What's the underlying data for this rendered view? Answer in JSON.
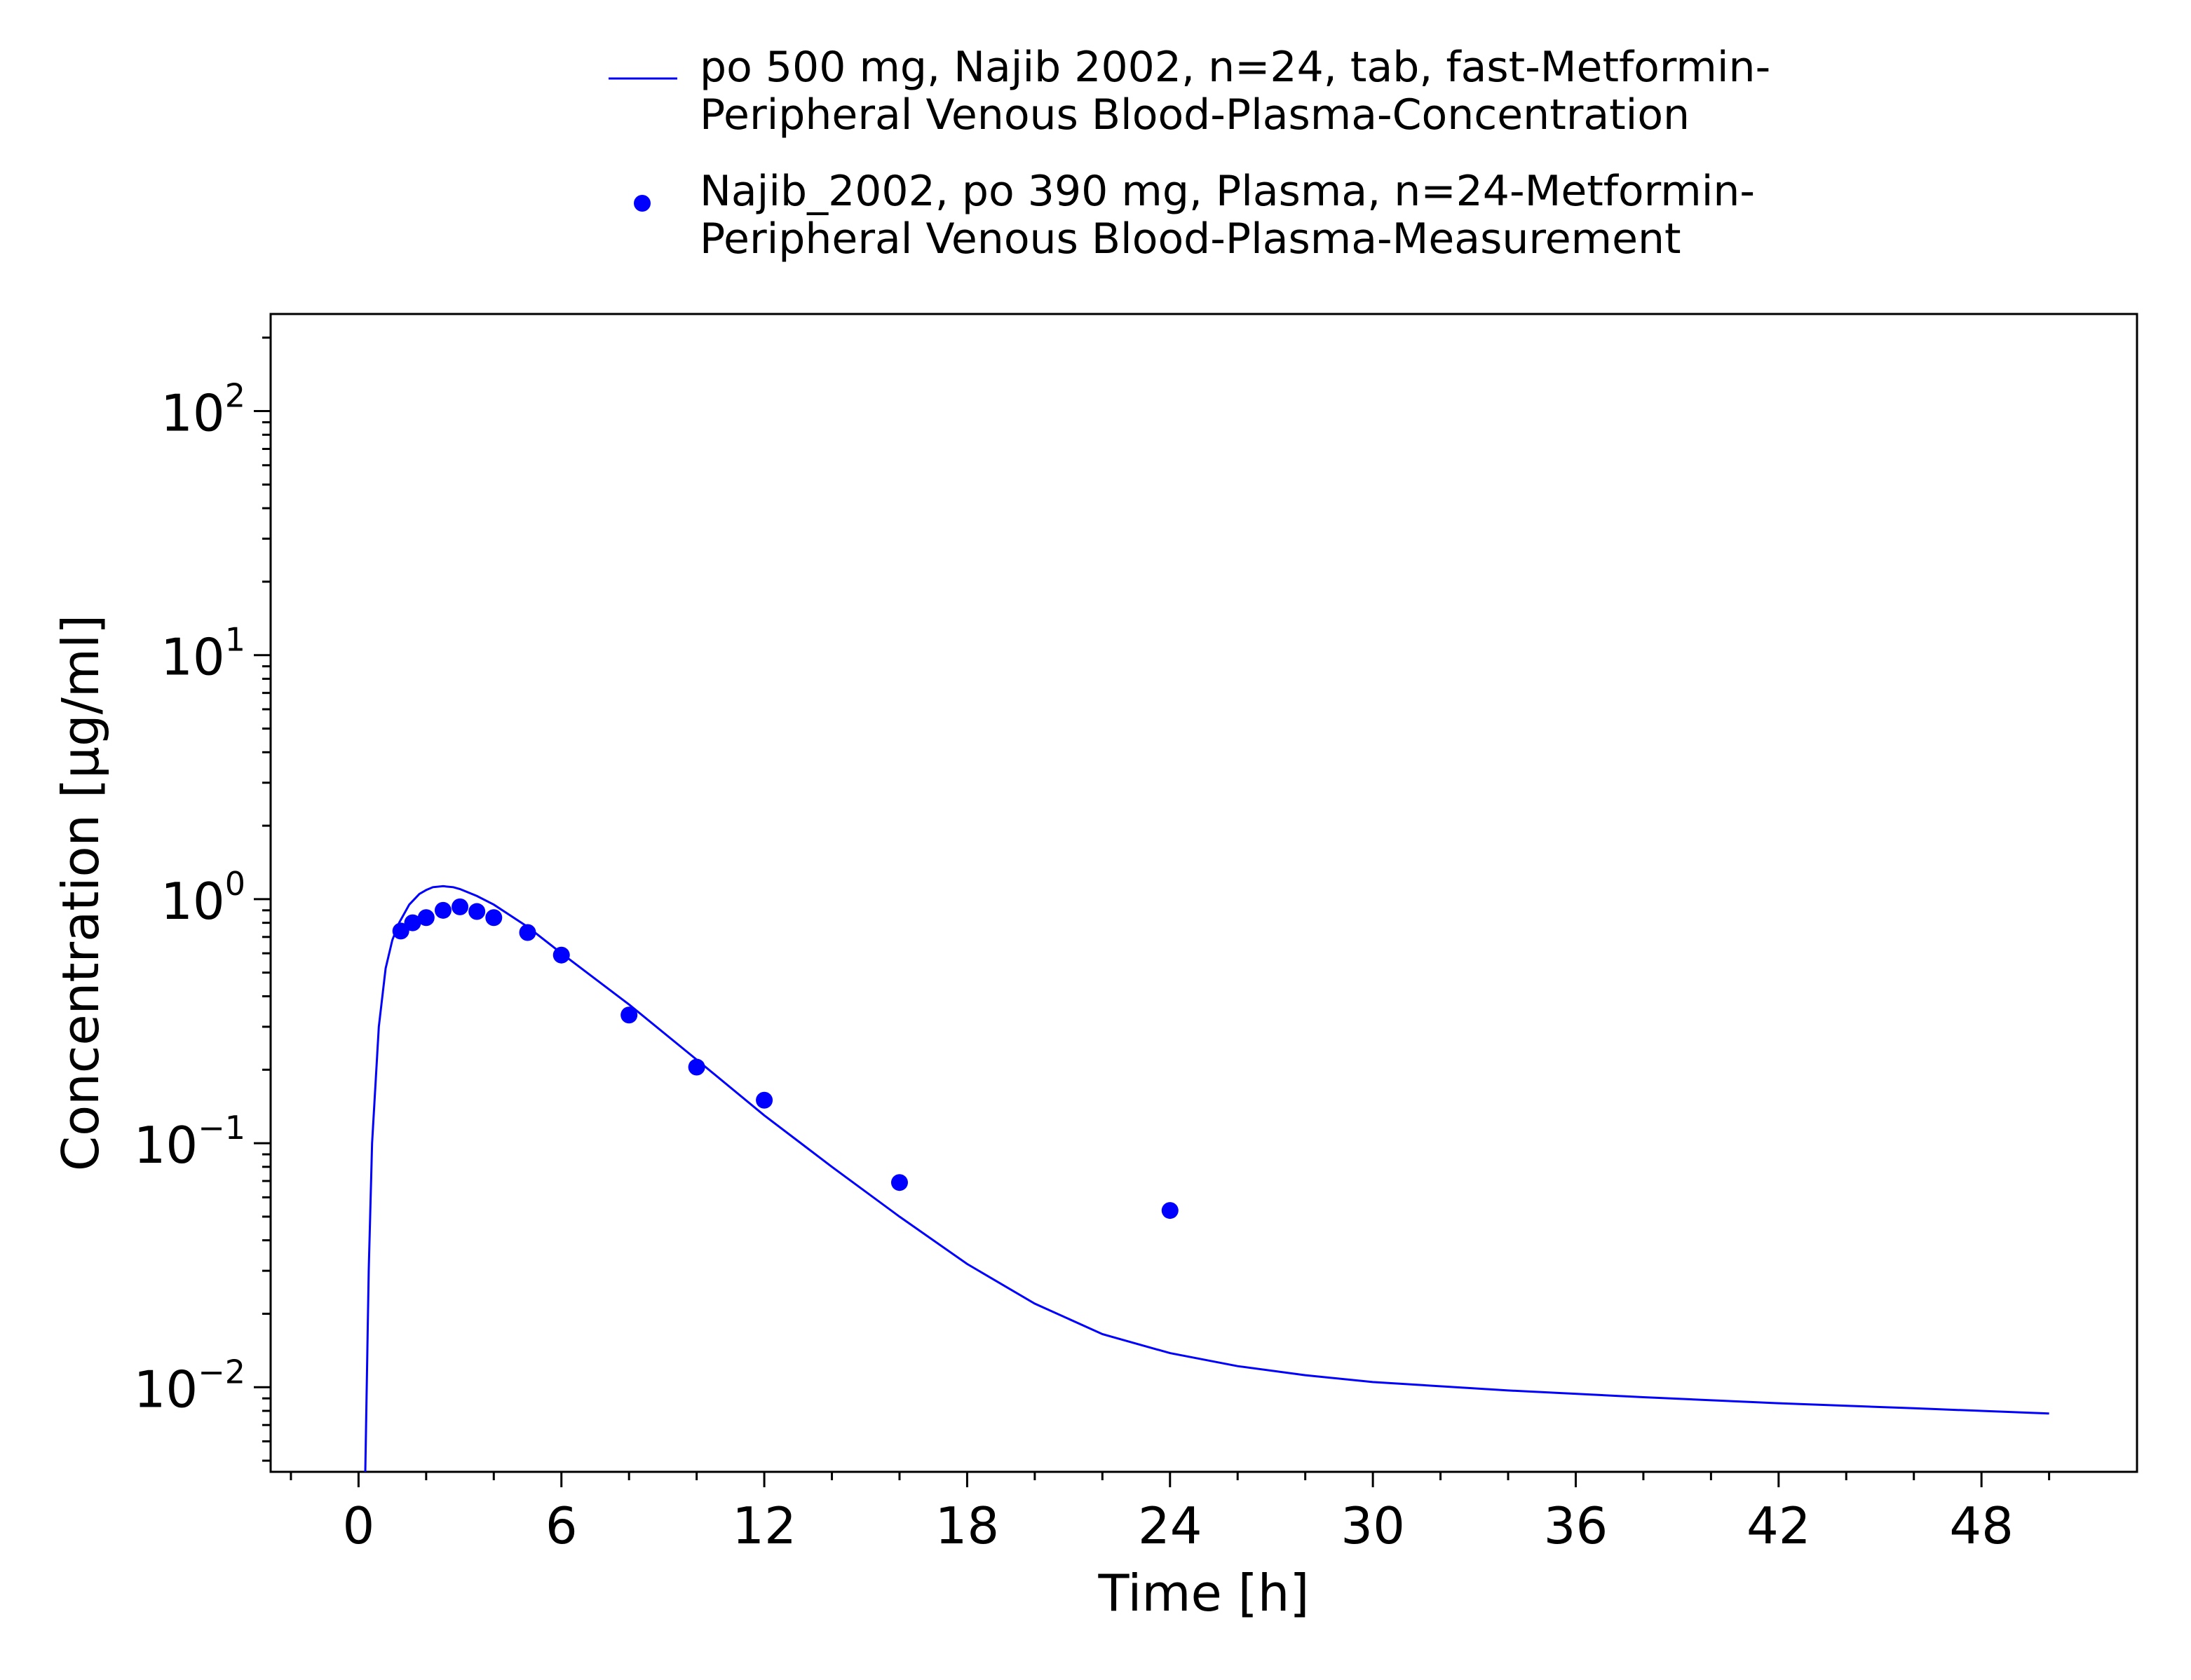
{
  "chart_data": {
    "type": "scatter",
    "xlabel": "Time [h]",
    "ylabel": "Concentration [µg/ml]",
    "x_scale": "linear",
    "y_scale": "log",
    "xlim": [
      -2.6,
      52.6
    ],
    "ylim": [
      0.0045,
      250
    ],
    "x_ticks": [
      0,
      6,
      12,
      18,
      24,
      30,
      36,
      42,
      48
    ],
    "x_tick_labels": [
      "0",
      "6",
      "12",
      "18",
      "24",
      "30",
      "36",
      "42",
      "48"
    ],
    "y_ticks": [
      {
        "value": 0.01,
        "base": "10",
        "exp": "−2"
      },
      {
        "value": 0.1,
        "base": "10",
        "exp": "−1"
      },
      {
        "value": 1,
        "base": "10",
        "exp": "0"
      },
      {
        "value": 10,
        "base": "10",
        "exp": "1"
      },
      {
        "value": 100,
        "base": "10",
        "exp": "2"
      }
    ],
    "legend_position": "top",
    "series": [
      {
        "name_lines": [
          "po 500 mg, Najib 2002, n=24, tab, fast-Metformin-",
          "Peripheral Venous Blood-Plasma-Concentration"
        ],
        "type": "line",
        "color": "#0000ff",
        "x": [
          0.2,
          0.3,
          0.4,
          0.6,
          0.8,
          1.0,
          1.2,
          1.5,
          1.8,
          2.0,
          2.2,
          2.5,
          2.8,
          3.0,
          3.5,
          4.0,
          5.0,
          6.0,
          8.0,
          10.0,
          12.0,
          14.0,
          16.0,
          18.0,
          20.0,
          22.0,
          24.0,
          26.0,
          28.0,
          30.0,
          34.0,
          38.0,
          42.0,
          46.0,
          50.0
        ],
        "y": [
          0.0045,
          0.03,
          0.1,
          0.3,
          0.52,
          0.68,
          0.8,
          0.95,
          1.05,
          1.09,
          1.12,
          1.13,
          1.12,
          1.1,
          1.03,
          0.95,
          0.77,
          0.6,
          0.37,
          0.22,
          0.13,
          0.08,
          0.05,
          0.032,
          0.022,
          0.0165,
          0.0138,
          0.0122,
          0.0112,
          0.0105,
          0.0097,
          0.0091,
          0.0086,
          0.0082,
          0.0078
        ]
      },
      {
        "name_lines": [
          "Najib_2002, po 390 mg, Plasma, n=24-Metformin-",
          "Peripheral Venous Blood-Plasma-Measurement"
        ],
        "type": "scatter",
        "color": "#0000ff",
        "x": [
          1.25,
          1.6,
          2.0,
          2.5,
          3.0,
          3.5,
          4.0,
          5.0,
          6.0,
          8.0,
          10.0,
          12.0,
          16.0,
          24.0
        ],
        "y": [
          0.74,
          0.8,
          0.84,
          0.9,
          0.93,
          0.89,
          0.84,
          0.73,
          0.59,
          0.335,
          0.205,
          0.15,
          0.069,
          0.053
        ]
      }
    ]
  }
}
